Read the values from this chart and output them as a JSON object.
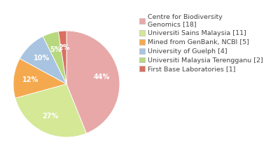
{
  "labels": [
    "Centre for Biodiversity\nGenomics [18]",
    "Universiti Sains Malaysia [11]",
    "Mined from GenBank, NCBI [5]",
    "University of Guelph [4]",
    "Universiti Malaysia Terengganu [2]",
    "First Base Laboratories [1]"
  ],
  "values": [
    18,
    11,
    5,
    4,
    2,
    1
  ],
  "colors": [
    "#e8a8a8",
    "#d4e896",
    "#f5a94e",
    "#a8c4e0",
    "#b8d880",
    "#d97060"
  ],
  "background_color": "#ffffff",
  "text_color": "#444444",
  "fontsize": 7.0,
  "legend_fontsize": 6.8
}
